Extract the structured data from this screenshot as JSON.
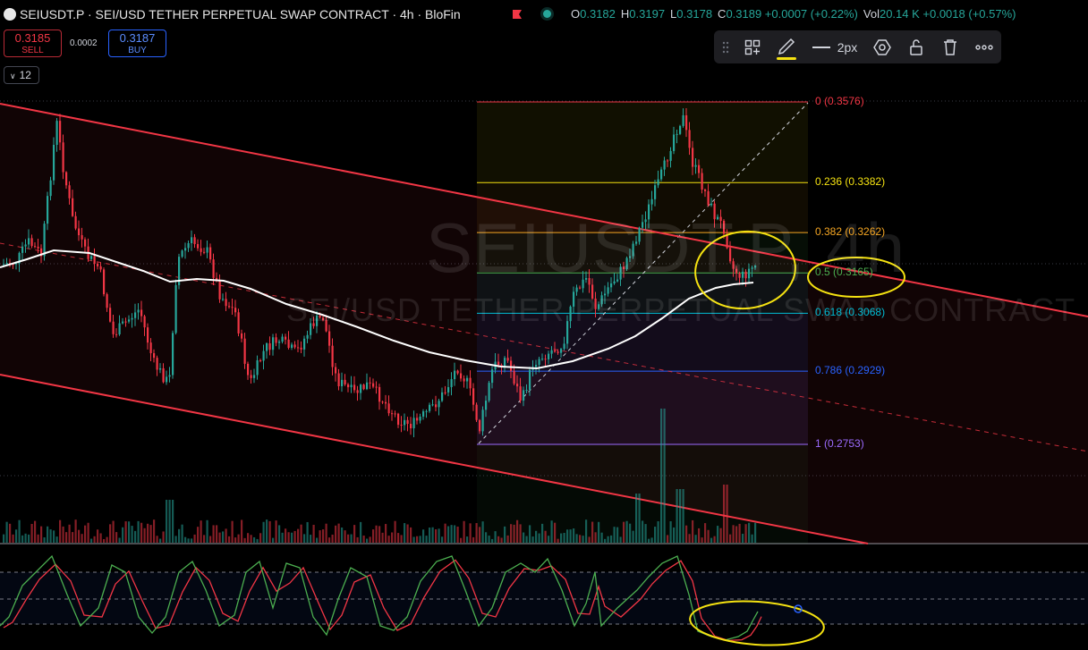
{
  "header": {
    "symbol_title": "SEIUSDT.P · SEI/USD TETHER PERPETUAL SWAP CONTRACT · 4h · BloFin",
    "ohlc": [
      {
        "k": "O",
        "v": "0.3182"
      },
      {
        "k": "H",
        "v": "0.3197"
      },
      {
        "k": "L",
        "v": "0.3178"
      },
      {
        "k": "C",
        "v": "0.3189 +0.0007 (+0.22%)"
      },
      {
        "k": "Vol",
        "v": "20.14 K +0.0018 (+0.57%)"
      }
    ]
  },
  "trade": {
    "sell_price": "0.3185",
    "sell_label": "SELL",
    "spread": "0.0002",
    "buy_price": "0.3187",
    "buy_label": "BUY"
  },
  "indicators_toggle": {
    "icon": "chevron-down-icon",
    "count": "12"
  },
  "drawing_toolbar": {
    "items": [
      "drag-handle-icon",
      "add-template-icon",
      "pencil-icon",
      "line-width-icon",
      "settings-icon",
      "lock-icon",
      "trash-icon",
      "more-icon"
    ],
    "line_width_label": "2px",
    "accent_color": "#f5e211"
  },
  "watermark": {
    "ticker": "SEIUSDT.P, 4h",
    "description": "SEI/USD TETHER PERPETUAL SWAP CONTRACT"
  },
  "fib_levels": [
    {
      "label": "0 (0.3576)",
      "price": 0.3576,
      "color": "#f23645"
    },
    {
      "label": "0.236 (0.3382)",
      "price": 0.3382,
      "color": "#f5e211"
    },
    {
      "label": "0.382 (0.3262)",
      "price": 0.3262,
      "color": "#f5a623"
    },
    {
      "label": "0.5 (0.3165)",
      "price": 0.3165,
      "color": "#4caf50"
    },
    {
      "label": "0.618 (0.3068)",
      "price": 0.3068,
      "color": "#00bcd4"
    },
    {
      "label": "0.786 (0.2929)",
      "price": 0.2929,
      "color": "#2962ff"
    },
    {
      "label": "1 (0.2753)",
      "price": 0.2753,
      "color": "#9c6bff"
    }
  ],
  "colors": {
    "up": "#26a69a",
    "down": "#f23645",
    "channel": "#f23645",
    "ma": "#ffffff",
    "stoch_k": "#4caf50",
    "stoch_d": "#f23645"
  }
}
